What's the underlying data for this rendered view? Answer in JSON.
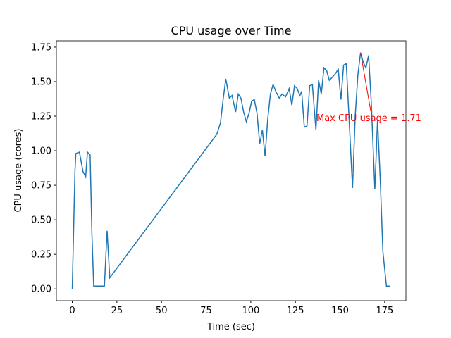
{
  "chart_data": {
    "type": "line",
    "title": "CPU usage over Time",
    "xlabel": "Time (sec)",
    "ylabel": "CPU usage (cores)",
    "x": [
      0,
      1.5,
      2,
      4,
      6,
      7.5,
      8.5,
      10,
      11,
      12,
      14,
      16,
      18,
      19.5,
      21,
      81,
      83,
      84.5,
      86,
      88,
      89.5,
      91.5,
      93,
      94.5,
      96,
      97.5,
      99,
      100.5,
      102,
      103.5,
      105,
      106.5,
      108,
      109.5,
      111,
      112.5,
      114,
      116,
      117.5,
      119.5,
      121.5,
      123,
      124.5,
      126,
      127.5,
      128.5,
      130,
      131.5,
      133,
      134.5,
      136.5,
      138,
      139.5,
      141,
      142.5,
      144,
      145.5,
      147.5,
      149,
      150.5,
      152,
      153.5,
      155,
      157,
      158.5,
      160,
      161.5,
      163,
      164.5,
      166,
      167.5,
      169.5,
      171,
      172.5,
      174,
      176,
      178
    ],
    "series": [
      {
        "name": "CPU usage",
        "color": "#1f77b4",
        "values": [
          0,
          0.85,
          0.98,
          0.99,
          0.85,
          0.81,
          0.99,
          0.97,
          0.4,
          0.02,
          0.02,
          0.02,
          0.02,
          0.42,
          0.08,
          1.12,
          1.2,
          1.37,
          1.52,
          1.38,
          1.4,
          1.28,
          1.41,
          1.38,
          1.28,
          1.21,
          1.27,
          1.36,
          1.37,
          1.27,
          1.05,
          1.15,
          0.96,
          1.23,
          1.41,
          1.48,
          1.43,
          1.38,
          1.41,
          1.39,
          1.45,
          1.33,
          1.47,
          1.45,
          1.4,
          1.43,
          1.17,
          1.18,
          1.47,
          1.48,
          1.15,
          1.51,
          1.41,
          1.6,
          1.58,
          1.51,
          1.53,
          1.56,
          1.59,
          1.37,
          1.62,
          1.63,
          1.25,
          0.73,
          1.25,
          1.55,
          1.71,
          1.64,
          1.6,
          1.69,
          1.35,
          0.72,
          1.22,
          0.8,
          0.27,
          0.02,
          0.02
        ]
      }
    ],
    "annotation": {
      "text": "Max CPU usage = 1.71",
      "color": "red"
    },
    "xlim": [
      -8.9,
      186.9
    ],
    "xticks": [
      0,
      25,
      50,
      75,
      100,
      125,
      150,
      175
    ],
    "ylim": [
      -0.0855,
      1.7955
    ],
    "yticks": [
      {
        "value": 0,
        "label": "0.00"
      },
      {
        "value": 0.25,
        "label": "0.25"
      },
      {
        "value": 0.5,
        "label": "0.50"
      },
      {
        "value": 0.75,
        "label": "0.75"
      },
      {
        "value": 1,
        "label": "1.00"
      },
      {
        "value": 1.25,
        "label": "1.25"
      },
      {
        "value": 1.5,
        "label": "1.50"
      },
      {
        "value": 1.75,
        "label": "1.75"
      }
    ]
  }
}
